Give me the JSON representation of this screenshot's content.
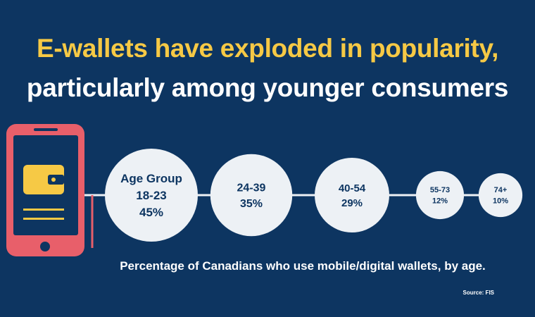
{
  "header": {
    "title_line1": "E-wallets have exploded in popularity,",
    "title_line2": "particularly among younger consumers"
  },
  "icons": {
    "phone": "phone-icon",
    "wallet": "wallet-icon"
  },
  "colors": {
    "background": "#0d3561",
    "accent_yellow": "#f6c945",
    "phone_red": "#e85f6a",
    "bubble_fill": "#edf1f5",
    "bubble_text": "#0d3561"
  },
  "chart_data": {
    "type": "bubble",
    "categories": [
      "18-23",
      "24-39",
      "40-54",
      "55-73",
      "74+"
    ],
    "values": [
      45,
      35,
      29,
      12,
      10
    ],
    "value_labels": [
      "45%",
      "35%",
      "29%",
      "12%",
      "10%"
    ],
    "group_label": "Age Group",
    "unit": "%"
  },
  "caption": "Percentage of Canadians who use mobile/digital wallets, by age.",
  "source": "Source: FIS"
}
